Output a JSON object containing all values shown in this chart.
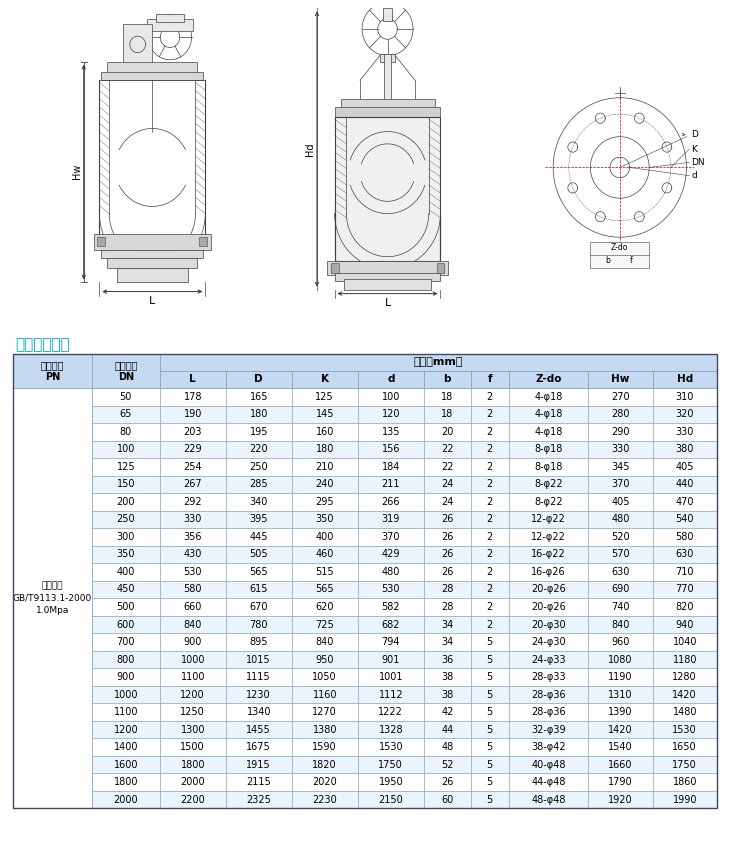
{
  "title": "主要连接尺寸",
  "title_color": "#00AACC",
  "header_bg": "#C5D9F1",
  "row_bg_odd": "#FFFFFF",
  "row_bg_even": "#EBF3FB",
  "sub_headers": [
    "L",
    "D",
    "K",
    "d",
    "b",
    "f",
    "Z-do",
    "Hw",
    "Hd"
  ],
  "left_col_label": "法兰标准\nGB/T9113.1-2000\n1.0Mpa",
  "rows": [
    [
      50,
      178,
      165,
      125,
      100,
      18,
      2,
      "4-φ18",
      270,
      310
    ],
    [
      65,
      190,
      180,
      145,
      120,
      18,
      2,
      "4-φ18",
      280,
      320
    ],
    [
      80,
      203,
      195,
      160,
      135,
      20,
      2,
      "4-φ18",
      290,
      330
    ],
    [
      100,
      229,
      220,
      180,
      156,
      22,
      2,
      "8-φ18",
      330,
      380
    ],
    [
      125,
      254,
      250,
      210,
      184,
      22,
      2,
      "8-φ18",
      345,
      405
    ],
    [
      150,
      267,
      285,
      240,
      211,
      24,
      2,
      "8-φ22",
      370,
      440
    ],
    [
      200,
      292,
      340,
      295,
      266,
      24,
      2,
      "8-φ22",
      405,
      470
    ],
    [
      250,
      330,
      395,
      350,
      319,
      26,
      2,
      "12-φ22",
      480,
      540
    ],
    [
      300,
      356,
      445,
      400,
      370,
      26,
      2,
      "12-φ22",
      520,
      580
    ],
    [
      350,
      430,
      505,
      460,
      429,
      26,
      2,
      "16-φ22",
      570,
      630
    ],
    [
      400,
      530,
      565,
      515,
      480,
      26,
      2,
      "16-φ26",
      630,
      710
    ],
    [
      450,
      580,
      615,
      565,
      530,
      28,
      2,
      "20-φ26",
      690,
      770
    ],
    [
      500,
      660,
      670,
      620,
      582,
      28,
      2,
      "20-φ26",
      740,
      820
    ],
    [
      600,
      840,
      780,
      725,
      682,
      34,
      2,
      "20-φ30",
      840,
      940
    ],
    [
      700,
      900,
      895,
      840,
      794,
      34,
      5,
      "24-φ30",
      960,
      1040
    ],
    [
      800,
      1000,
      1015,
      950,
      901,
      36,
      5,
      "24-φ33",
      1080,
      1180
    ],
    [
      900,
      1100,
      1115,
      1050,
      1001,
      38,
      5,
      "28-φ33",
      1190,
      1280
    ],
    [
      1000,
      1200,
      1230,
      1160,
      1112,
      38,
      5,
      "28-φ36",
      1310,
      1420
    ],
    [
      1100,
      1250,
      1340,
      1270,
      1222,
      42,
      5,
      "28-φ36",
      1390,
      1480
    ],
    [
      1200,
      1300,
      1455,
      1380,
      1328,
      44,
      5,
      "32-φ39",
      1420,
      1530
    ],
    [
      1400,
      1500,
      1675,
      1590,
      1530,
      48,
      5,
      "38-φ42",
      1540,
      1650
    ],
    [
      1600,
      1800,
      1915,
      1820,
      1750,
      52,
      5,
      "40-φ48",
      1660,
      1750
    ],
    [
      1800,
      2000,
      2115,
      2020,
      1950,
      26,
      5,
      "44-φ48",
      1790,
      1860
    ],
    [
      2000,
      2200,
      2325,
      2230,
      2150,
      60,
      5,
      "48-φ48",
      1920,
      1990
    ]
  ],
  "border_color": "#7F9EC4",
  "text_color": "#000000",
  "fig_bg": "#FFFFFF"
}
